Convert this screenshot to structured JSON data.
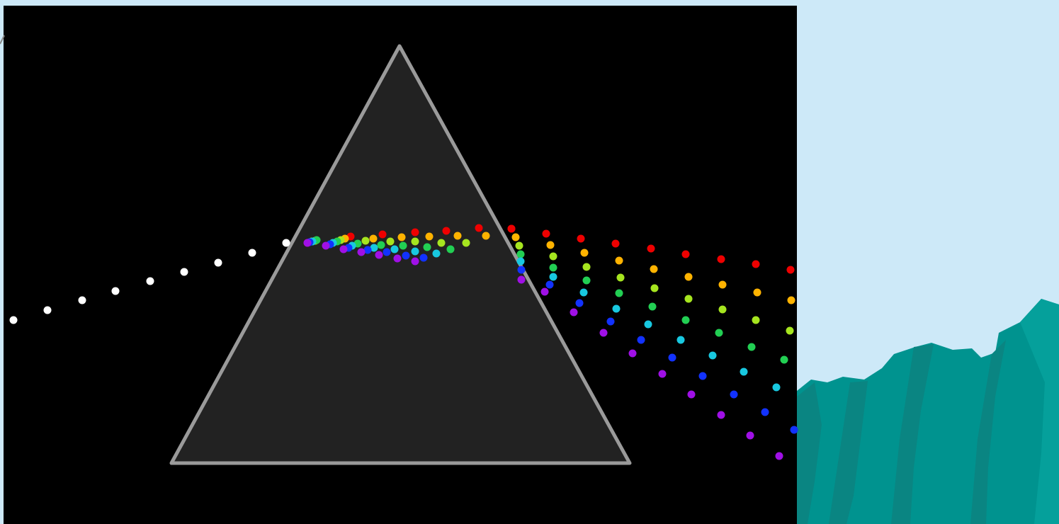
{
  "scene": {
    "subject": "white-light-dispersion-through-prism",
    "colors": {
      "sky": "#cde9f8",
      "canvas": "#000000",
      "prism_fill": "#222222",
      "prism_edge": "#9a9a9a",
      "incident_ray": "#ffffff",
      "cliff_main": "#00938f",
      "cliff_shade": "#0a8582",
      "cliff_light": "#05a09b"
    },
    "spectrum": [
      {
        "name": "red",
        "color": "#ee0000"
      },
      {
        "name": "orange",
        "color": "#ffb300"
      },
      {
        "name": "yellow-green",
        "color": "#a6e51f"
      },
      {
        "name": "green",
        "color": "#22cf53"
      },
      {
        "name": "cyan",
        "color": "#18c8e0"
      },
      {
        "name": "blue",
        "color": "#1232ff"
      },
      {
        "name": "violet",
        "color": "#a010e6"
      }
    ]
  }
}
